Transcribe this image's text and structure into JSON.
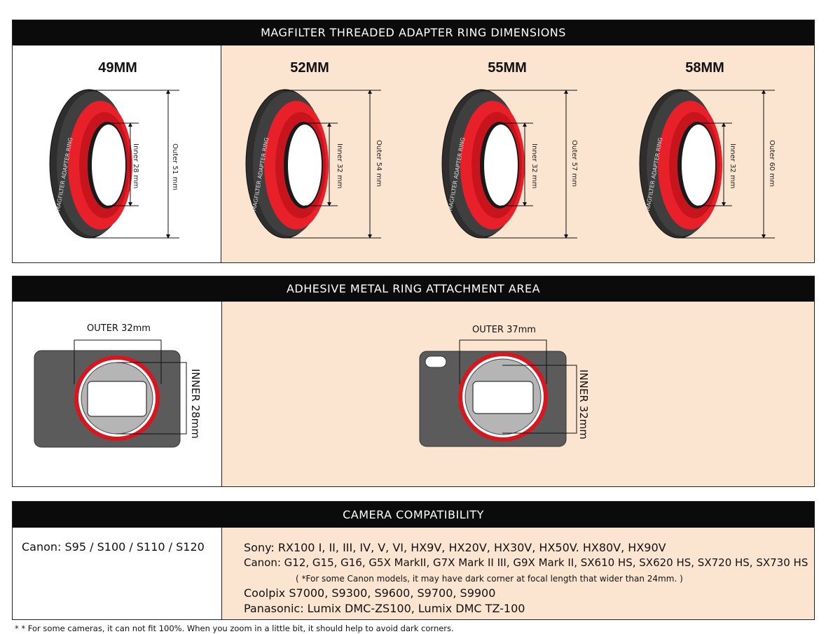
{
  "section1": {
    "title": "MAGFILTER THREADED ADAPTER RING DIMENSIONS",
    "ring_text": "MAGFILTER ADAPTER RING",
    "rings": [
      {
        "size": "49MM",
        "inner": "Inner 28 mm",
        "outer": "Outer 51 mm"
      },
      {
        "size": "52MM",
        "inner": "Inner 32 mm",
        "outer": "Outer 54 mm"
      },
      {
        "size": "55MM",
        "inner": "Inner 32 mm",
        "outer": "Outer 57 mm"
      },
      {
        "size": "58MM",
        "inner": "Inner 32 mm",
        "outer": "Outer 60 mm"
      }
    ]
  },
  "section2": {
    "title": "ADHESIVE METAL RING ATTACHMENT AREA",
    "left": {
      "outer": "OUTER 32mm",
      "inner": "INNER 28mm"
    },
    "right": {
      "outer": "OUTER 37mm",
      "inner": "INNER 32mm"
    }
  },
  "section3": {
    "title": "CAMERA COMPATIBILITY",
    "left_text": "Canon: S95 / S100 / S110 / S120",
    "lines": [
      "Sony: RX100 I, II, III, IV, V, VI, HX9V, HX20V, HX30V, HX50V. HX80V, HX90V",
      "Canon: G12, G15, G16, G5X MarkII, G7X Mark II III, G9X Mark II, SX610 HS, SX620 HS, SX720 HS, SX730 HS",
      "Coolpix S7000, S9300, S9600, S9700, S9900",
      "Panasonic: Lumix DMC-ZS100, Lumix DMC TZ-100"
    ],
    "note": "( *For some Canon models, it may have dark corner at focal length that wider than 24mm. )"
  },
  "footnote": "* * For some cameras, it can not fit 100%. When you zoom in a little bit, it should help to avoid dark corners.",
  "colors": {
    "peach": "#fce5d0",
    "header": "#0b0b0b",
    "ring_red": "#e8202a",
    "ring_dark": "#333333"
  }
}
